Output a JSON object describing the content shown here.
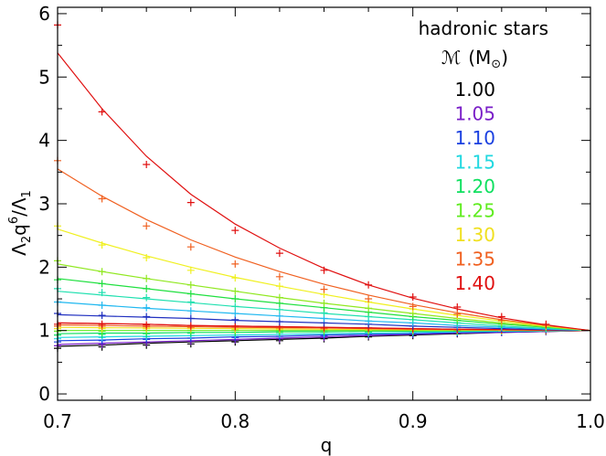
{
  "chart_data": {
    "type": "line",
    "title": "",
    "xlabel": "q",
    "ylabel": "Λ2q6/Λ1",
    "ylabel_parts": {
      "base": "Λ",
      "sub1": "2",
      "mid": "q",
      "sup": "6",
      "tail": "/Λ",
      "sub2": "1"
    },
    "xlim": [
      0.7,
      1.0
    ],
    "ylim": [
      -0.1,
      6.1
    ],
    "xticks": [
      0.7,
      0.8,
      0.9,
      1.0
    ],
    "xtick_labels": [
      "0.7",
      "0.8",
      "0.9",
      "1.0"
    ],
    "yticks": [
      0,
      1,
      2,
      3,
      4,
      5,
      6
    ],
    "ytick_labels": [
      "0",
      "1",
      "2",
      "3",
      "4",
      "5",
      "6"
    ],
    "grid": false,
    "legend": {
      "placement": "top-right",
      "heading": "hadronic stars",
      "mass_label_symbol": "ℳ",
      "mass_label_unit": "(M",
      "mass_label_sun": "⊙",
      "mass_label_close": ")"
    },
    "x": [
      0.7,
      0.725,
      0.75,
      0.775,
      0.8,
      0.825,
      0.85,
      0.875,
      0.9,
      0.925,
      0.95,
      0.975,
      1.0
    ],
    "marker_x": [
      0.7,
      0.725,
      0.75,
      0.775,
      0.8,
      0.825,
      0.85,
      0.875,
      0.9,
      0.925,
      0.95,
      0.975
    ],
    "series": [
      {
        "name": "1.00",
        "color": "#000000",
        "values": [
          0.75,
          0.77,
          0.8,
          0.82,
          0.84,
          0.86,
          0.88,
          0.91,
          0.93,
          0.95,
          0.97,
          0.985,
          1.0
        ],
        "markers": [
          0.72,
          0.74,
          0.77,
          0.79,
          0.82,
          0.84,
          0.87,
          0.9,
          0.92,
          0.95,
          0.97,
          0.985
        ]
      },
      {
        "name": "1.05",
        "color": "#7a1fc8",
        "values": [
          0.78,
          0.8,
          0.82,
          0.84,
          0.86,
          0.88,
          0.9,
          0.92,
          0.94,
          0.96,
          0.97,
          0.985,
          1.0
        ],
        "markers": [
          0.76,
          0.78,
          0.81,
          0.83,
          0.85,
          0.87,
          0.89,
          0.92,
          0.94,
          0.96,
          0.97,
          0.985
        ]
      },
      {
        "name": "1.10",
        "color": "#1a40e0",
        "values": [
          0.84,
          0.85,
          0.87,
          0.88,
          0.9,
          0.91,
          0.93,
          0.94,
          0.95,
          0.97,
          0.98,
          0.99,
          1.0
        ],
        "markers": [
          0.82,
          0.84,
          0.86,
          0.88,
          0.89,
          0.91,
          0.92,
          0.94,
          0.95,
          0.97,
          0.98,
          0.99
        ]
      },
      {
        "name": "1.15",
        "color": "#20d8e0",
        "values": [
          0.89,
          0.9,
          0.91,
          0.92,
          0.93,
          0.94,
          0.95,
          0.96,
          0.97,
          0.98,
          0.99,
          0.995,
          1.0
        ],
        "markers": [
          0.87,
          0.89,
          0.9,
          0.92,
          0.93,
          0.94,
          0.95,
          0.96,
          0.97,
          0.98,
          0.99,
          0.995
        ]
      },
      {
        "name": "1.20",
        "color": "#10e060",
        "values": [
          0.95,
          0.96,
          0.96,
          0.97,
          0.97,
          0.98,
          0.98,
          0.99,
          0.99,
          0.995,
          1.0,
          1.0,
          1.0
        ],
        "markers": [
          0.93,
          0.94,
          0.95,
          0.96,
          0.97,
          0.97,
          0.98,
          0.98,
          0.99,
          0.99,
          1.0,
          1.0
        ]
      },
      {
        "name": "1.25",
        "color": "#60ec20",
        "values": [
          1.0,
          1.0,
          1.0,
          1.0,
          1.0,
          1.0,
          1.0,
          1.0,
          1.0,
          1.0,
          1.0,
          1.0,
          1.0
        ],
        "markers": [
          0.99,
          0.99,
          1.0,
          1.0,
          1.0,
          1.0,
          1.0,
          1.0,
          1.0,
          1.0,
          1.0,
          1.0
        ]
      },
      {
        "name": "1.30",
        "color": "#f0e020",
        "values": [
          1.05,
          1.045,
          1.04,
          1.035,
          1.03,
          1.025,
          1.02,
          1.015,
          1.01,
          1.007,
          1.004,
          1.002,
          1.0
        ],
        "markers": [
          1.03,
          1.03,
          1.03,
          1.03,
          1.02,
          1.02,
          1.02,
          1.01,
          1.01,
          1.01,
          1.0,
          1.0
        ]
      },
      {
        "name": "1.35",
        "color": "#f06020",
        "values": [
          1.09,
          1.08,
          1.07,
          1.06,
          1.05,
          1.045,
          1.04,
          1.03,
          1.02,
          1.015,
          1.01,
          1.005,
          1.0
        ],
        "markers": [
          1.07,
          1.07,
          1.06,
          1.05,
          1.05,
          1.04,
          1.03,
          1.03,
          1.02,
          1.01,
          1.01,
          1.0
        ]
      },
      {
        "name": "1.40",
        "color": "#e01010",
        "values": [
          1.12,
          1.11,
          1.1,
          1.08,
          1.07,
          1.06,
          1.05,
          1.04,
          1.03,
          1.02,
          1.015,
          1.007,
          1.0
        ],
        "markers": [
          1.1,
          1.1,
          1.09,
          1.08,
          1.07,
          1.06,
          1.05,
          1.04,
          1.03,
          1.02,
          1.015,
          1.007
        ]
      },
      {
        "name": "",
        "color": "#e01010",
        "values": [
          1.12,
          1.11,
          1.1,
          1.08,
          1.07,
          1.06,
          1.05,
          1.04,
          1.03,
          1.02,
          1.015,
          1.007,
          1.0
        ],
        "markers": []
      },
      {
        "name": "",
        "color": "#2030c0",
        "values": [
          1.25,
          1.23,
          1.21,
          1.19,
          1.16,
          1.14,
          1.12,
          1.1,
          1.07,
          1.05,
          1.03,
          1.015,
          1.0
        ],
        "markers": [
          1.27,
          1.24,
          1.22,
          1.19,
          1.17,
          1.14,
          1.12,
          1.1,
          1.07,
          1.05,
          1.03,
          1.015
        ]
      },
      {
        "name": "",
        "color": "#20b8f0",
        "values": [
          1.45,
          1.4,
          1.35,
          1.31,
          1.27,
          1.23,
          1.19,
          1.15,
          1.12,
          1.08,
          1.05,
          1.025,
          1.0
        ],
        "markers": [
          1.45,
          1.4,
          1.36,
          1.31,
          1.27,
          1.23,
          1.19,
          1.15,
          1.12,
          1.08,
          1.05,
          1.025
        ]
      },
      {
        "name": "",
        "color": "#20e0b0",
        "values": [
          1.62,
          1.56,
          1.5,
          1.44,
          1.38,
          1.33,
          1.27,
          1.22,
          1.17,
          1.12,
          1.07,
          1.035,
          1.0
        ],
        "markers": [
          1.66,
          1.6,
          1.52,
          1.45,
          1.38,
          1.33,
          1.28,
          1.22,
          1.17,
          1.12,
          1.07,
          1.035
        ]
      },
      {
        "name": "",
        "color": "#20e040",
        "values": [
          1.82,
          1.74,
          1.66,
          1.58,
          1.5,
          1.43,
          1.36,
          1.29,
          1.22,
          1.16,
          1.1,
          1.05,
          1.0
        ],
        "markers": [
          1.8,
          1.74,
          1.66,
          1.58,
          1.5,
          1.43,
          1.36,
          1.29,
          1.22,
          1.16,
          1.1,
          1.05
        ]
      },
      {
        "name": "",
        "color": "#90e820",
        "values": [
          2.05,
          1.93,
          1.82,
          1.72,
          1.62,
          1.52,
          1.43,
          1.35,
          1.27,
          1.19,
          1.12,
          1.06,
          1.0
        ],
        "markers": [
          2.1,
          1.93,
          1.82,
          1.72,
          1.62,
          1.52,
          1.43,
          1.35,
          1.27,
          1.19,
          1.12,
          1.06
        ]
      },
      {
        "name": "",
        "color": "#f0f020",
        "values": [
          2.6,
          2.38,
          2.18,
          2.0,
          1.84,
          1.7,
          1.57,
          1.45,
          1.34,
          1.24,
          1.15,
          1.07,
          1.0
        ],
        "markers": [
          2.65,
          2.35,
          2.15,
          1.95,
          1.83,
          1.7,
          1.57,
          1.45,
          1.34,
          1.24,
          1.15,
          1.07
        ]
      },
      {
        "name": "",
        "color": "#f06020",
        "values": [
          3.55,
          3.12,
          2.75,
          2.43,
          2.16,
          1.93,
          1.73,
          1.56,
          1.41,
          1.28,
          1.17,
          1.08,
          1.0
        ],
        "markers": [
          3.68,
          3.08,
          2.65,
          2.32,
          2.05,
          1.85,
          1.65,
          1.5,
          1.38,
          1.26,
          1.16,
          1.08
        ]
      },
      {
        "name": "",
        "color": "#e01010",
        "values": [
          5.38,
          4.5,
          3.75,
          3.15,
          2.68,
          2.3,
          1.98,
          1.72,
          1.51,
          1.34,
          1.2,
          1.09,
          1.0
        ],
        "markers": [
          5.82,
          4.45,
          3.62,
          3.02,
          2.58,
          2.22,
          1.95,
          1.72,
          1.53,
          1.37,
          1.22,
          1.1
        ]
      }
    ],
    "legend_entries": [
      {
        "label": "1.00",
        "color": "#000000"
      },
      {
        "label": "1.05",
        "color": "#7a1fc8"
      },
      {
        "label": "1.10",
        "color": "#1a40e0"
      },
      {
        "label": "1.15",
        "color": "#20d8e0"
      },
      {
        "label": "1.20",
        "color": "#10e060"
      },
      {
        "label": "1.25",
        "color": "#60ec20"
      },
      {
        "label": "1.30",
        "color": "#f0e020"
      },
      {
        "label": "1.35",
        "color": "#f06020"
      },
      {
        "label": "1.40",
        "color": "#e01010"
      }
    ]
  }
}
